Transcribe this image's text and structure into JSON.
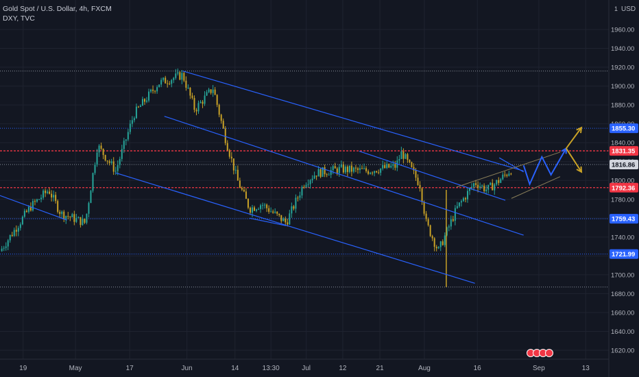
{
  "legend": {
    "symbol_line": "Gold Spot / U.S. Dollar, 4h, FXCM",
    "compare_line": "DXY, TVC"
  },
  "currency_label": "USD",
  "colors": {
    "background": "#131722",
    "grid": "#1f2330",
    "axis_text": "#b2b5be",
    "candle_up": "#26a69a",
    "candle_down": "#c9a227",
    "channel": "#2962ff",
    "level_blue": "#2962ff",
    "level_red": "#f23645",
    "projection_blue": "#2962ff",
    "projection_gold": "#c9a227"
  },
  "chart_data": {
    "type": "candlestick",
    "ylim": [
      1607,
      1970
    ],
    "log_scale": false,
    "grid": true,
    "y_ticks": [
      1620,
      1640,
      1660,
      1680,
      1700,
      1720,
      1740,
      1760,
      1780,
      1800,
      1820,
      1840,
      1860,
      1880,
      1900,
      1920,
      1940,
      1960
    ],
    "x_ticks": [
      "19",
      "May",
      "17",
      "Jun",
      "14",
      "13:30",
      "Jul",
      "12",
      "21",
      "Aug",
      "16",
      "Sep",
      "13"
    ],
    "price_badges": [
      {
        "label": "1855.30",
        "value": 1855.3,
        "kind": "blue"
      },
      {
        "label": "1831.35",
        "value": 1831.35,
        "kind": "red"
      },
      {
        "label": "1816.86",
        "value": 1816.86,
        "kind": "current"
      },
      {
        "label": "1792.36",
        "value": 1792.36,
        "kind": "red"
      },
      {
        "label": "1759.43",
        "value": 1759.43,
        "kind": "blue"
      },
      {
        "label": "1721.99",
        "value": 1721.99,
        "kind": "blue"
      }
    ],
    "horizontal_levels": [
      {
        "value": 1916,
        "style": "dotted",
        "color": "gray"
      },
      {
        "value": 1855.3,
        "style": "dotted",
        "color": "blue"
      },
      {
        "value": 1831.35,
        "style": "dashed",
        "color": "red"
      },
      {
        "value": 1816.86,
        "style": "dotted",
        "color": "gray"
      },
      {
        "value": 1792.36,
        "style": "dashed",
        "color": "red"
      },
      {
        "value": 1759.43,
        "style": "dotted",
        "color": "blue"
      },
      {
        "value": 1721.99,
        "style": "dotted",
        "color": "blue"
      },
      {
        "value": 1687,
        "style": "dotted",
        "color": "gray"
      }
    ],
    "price_path": [
      [
        0,
        1725
      ],
      [
        0.05,
        1772
      ],
      [
        0.08,
        1790
      ],
      [
        0.1,
        1765
      ],
      [
        0.14,
        1755
      ],
      [
        0.16,
        1837
      ],
      [
        0.19,
        1810
      ],
      [
        0.22,
        1870
      ],
      [
        0.26,
        1903
      ],
      [
        0.3,
        1912
      ],
      [
        0.32,
        1875
      ],
      [
        0.35,
        1898
      ],
      [
        0.37,
        1845
      ],
      [
        0.39,
        1800
      ],
      [
        0.41,
        1770
      ],
      [
        0.43,
        1775
      ],
      [
        0.47,
        1755
      ],
      [
        0.5,
        1798
      ],
      [
        0.52,
        1808
      ],
      [
        0.56,
        1812
      ],
      [
        0.6,
        1810
      ],
      [
        0.65,
        1815
      ],
      [
        0.66,
        1830
      ],
      [
        0.69,
        1795
      ],
      [
        0.7,
        1755
      ],
      [
        0.72,
        1725
      ],
      [
        0.75,
        1770
      ],
      [
        0.78,
        1798
      ],
      [
        0.8,
        1790
      ],
      [
        0.82,
        1800
      ],
      [
        0.84,
        1812
      ]
    ],
    "trendlines": [
      {
        "role": "channel",
        "from": [
          0.3,
          1916
        ],
        "to": [
          0.86,
          1810
        ]
      },
      {
        "role": "channel",
        "from": [
          0.27,
          1868
        ],
        "to": [
          0.86,
          1742
        ]
      },
      {
        "role": "channel",
        "from": [
          0.19,
          1808
        ],
        "to": [
          0.78,
          1691
        ]
      },
      {
        "role": "channel",
        "from": [
          0.0,
          1784
        ],
        "to": [
          0.11,
          1758
        ]
      },
      {
        "role": "channel",
        "from": [
          0.59,
          1831
        ],
        "to": [
          0.83,
          1779
        ]
      },
      {
        "role": "channel",
        "from": [
          0.41,
          1760
        ],
        "to": [
          0.47,
          1752
        ]
      },
      {
        "role": "channel",
        "from": [
          0.82,
          1824
        ],
        "to": [
          0.86,
          1809
        ]
      },
      {
        "role": "rising_channel",
        "from": [
          0.75,
          1793
        ],
        "to": [
          0.92,
          1830
        ]
      },
      {
        "role": "rising_channel",
        "from": [
          0.84,
          1781
        ],
        "to": [
          0.92,
          1804
        ]
      },
      {
        "role": "projection_blue",
        "points": [
          [
            0.86,
            1816
          ],
          [
            0.87,
            1796
          ],
          [
            0.89,
            1825
          ],
          [
            0.905,
            1806
          ],
          [
            0.93,
            1834
          ]
        ]
      },
      {
        "role": "projection_gold",
        "points": [
          [
            0.93,
            1834
          ],
          [
            0.955,
            1856
          ]
        ]
      },
      {
        "role": "projection_gold",
        "points": [
          [
            0.93,
            1834
          ],
          [
            0.955,
            1809
          ]
        ]
      }
    ],
    "event_markers": 4
  }
}
